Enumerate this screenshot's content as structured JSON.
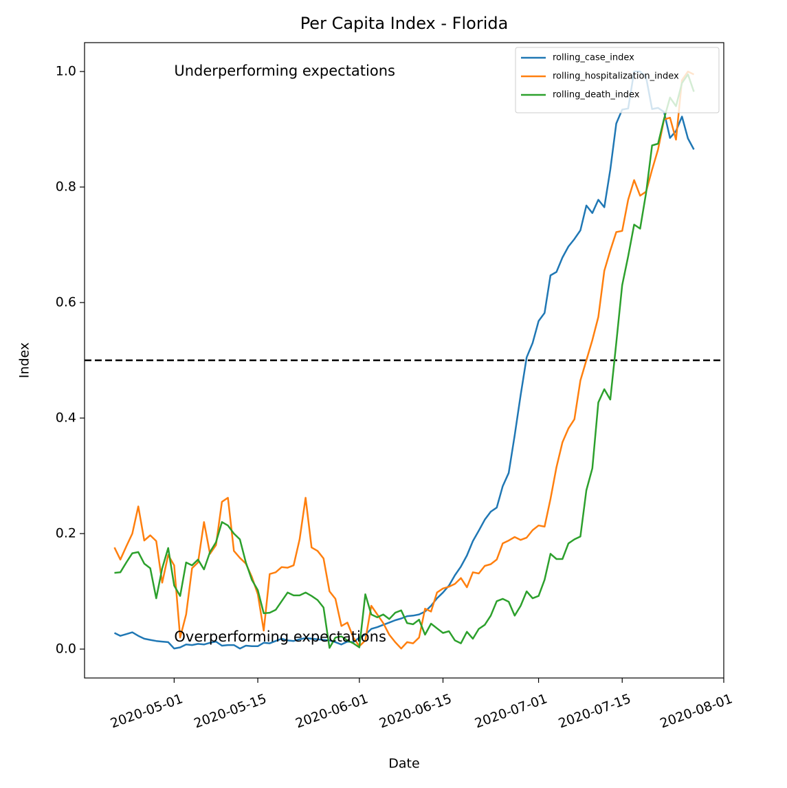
{
  "chart_data": {
    "type": "line",
    "title": "Per Capita Index - Florida",
    "xlabel": "Date",
    "ylabel": "Index",
    "x": [
      "2020-04-21",
      "2020-04-22",
      "2020-04-23",
      "2020-04-24",
      "2020-04-25",
      "2020-04-26",
      "2020-04-27",
      "2020-04-28",
      "2020-04-29",
      "2020-04-30",
      "2020-05-01",
      "2020-05-02",
      "2020-05-03",
      "2020-05-04",
      "2020-05-05",
      "2020-05-06",
      "2020-05-07",
      "2020-05-08",
      "2020-05-09",
      "2020-05-10",
      "2020-05-11",
      "2020-05-12",
      "2020-05-13",
      "2020-05-14",
      "2020-05-15",
      "2020-05-16",
      "2020-05-17",
      "2020-05-18",
      "2020-05-19",
      "2020-05-20",
      "2020-05-21",
      "2020-05-22",
      "2020-05-23",
      "2020-05-24",
      "2020-05-25",
      "2020-05-26",
      "2020-05-27",
      "2020-05-28",
      "2020-05-29",
      "2020-05-30",
      "2020-05-31",
      "2020-06-01",
      "2020-06-02",
      "2020-06-03",
      "2020-06-04",
      "2020-06-05",
      "2020-06-06",
      "2020-06-07",
      "2020-06-08",
      "2020-06-09",
      "2020-06-10",
      "2020-06-11",
      "2020-06-12",
      "2020-06-13",
      "2020-06-14",
      "2020-06-15",
      "2020-06-16",
      "2020-06-17",
      "2020-06-18",
      "2020-06-19",
      "2020-06-20",
      "2020-06-21",
      "2020-06-22",
      "2020-06-23",
      "2020-06-24",
      "2020-06-25",
      "2020-06-26",
      "2020-06-27",
      "2020-06-28",
      "2020-06-29",
      "2020-06-30",
      "2020-07-01",
      "2020-07-02",
      "2020-07-03",
      "2020-07-04",
      "2020-07-05",
      "2020-07-06",
      "2020-07-07",
      "2020-07-08",
      "2020-07-09",
      "2020-07-10",
      "2020-07-11",
      "2020-07-12",
      "2020-07-13",
      "2020-07-14",
      "2020-07-15",
      "2020-07-16",
      "2020-07-17",
      "2020-07-18",
      "2020-07-19",
      "2020-07-20",
      "2020-07-21",
      "2020-07-22",
      "2020-07-23",
      "2020-07-24",
      "2020-07-25",
      "2020-07-26",
      "2020-07-27"
    ],
    "series": [
      {
        "name": "rolling_case_index",
        "color": "#1f77b4",
        "values": [
          0.028,
          0.023,
          0.026,
          0.029,
          0.023,
          0.018,
          0.016,
          0.014,
          0.013,
          0.012,
          0.001,
          0.003,
          0.008,
          0.007,
          0.009,
          0.008,
          0.011,
          0.013,
          0.006,
          0.007,
          0.007,
          0.001,
          0.006,
          0.005,
          0.005,
          0.011,
          0.01,
          0.014,
          0.018,
          0.015,
          0.014,
          0.017,
          0.019,
          0.018,
          0.017,
          0.016,
          0.015,
          0.012,
          0.008,
          0.013,
          0.012,
          0.02,
          0.025,
          0.035,
          0.038,
          0.042,
          0.046,
          0.05,
          0.053,
          0.057,
          0.058,
          0.06,
          0.065,
          0.075,
          0.088,
          0.098,
          0.11,
          0.128,
          0.143,
          0.162,
          0.187,
          0.205,
          0.224,
          0.238,
          0.245,
          0.282,
          0.305,
          0.37,
          0.44,
          0.505,
          0.53,
          0.568,
          0.582,
          0.647,
          0.653,
          0.678,
          0.697,
          0.71,
          0.725,
          0.768,
          0.755,
          0.778,
          0.765,
          0.83,
          0.91,
          0.934,
          0.936,
          1.0,
          1.0,
          0.99,
          0.935,
          0.937,
          0.93,
          0.885,
          0.897,
          0.922,
          0.884,
          0.865
        ]
      },
      {
        "name": "rolling_hospitalization_index",
        "color": "#ff7f0e",
        "values": [
          0.176,
          0.155,
          0.178,
          0.2,
          0.247,
          0.188,
          0.197,
          0.187,
          0.115,
          0.163,
          0.145,
          0.02,
          0.06,
          0.14,
          0.15,
          0.22,
          0.165,
          0.18,
          0.255,
          0.262,
          0.17,
          0.158,
          0.148,
          0.125,
          0.095,
          0.032,
          0.13,
          0.133,
          0.142,
          0.141,
          0.145,
          0.19,
          0.262,
          0.176,
          0.17,
          0.157,
          0.1,
          0.087,
          0.04,
          0.046,
          0.02,
          0.005,
          0.015,
          0.075,
          0.06,
          0.045,
          0.025,
          0.012,
          0.001,
          0.012,
          0.01,
          0.02,
          0.07,
          0.065,
          0.098,
          0.105,
          0.108,
          0.113,
          0.123,
          0.107,
          0.133,
          0.131,
          0.144,
          0.147,
          0.155,
          0.183,
          0.188,
          0.194,
          0.189,
          0.193,
          0.206,
          0.214,
          0.212,
          0.26,
          0.315,
          0.358,
          0.382,
          0.398,
          0.465,
          0.5,
          0.535,
          0.575,
          0.655,
          0.69,
          0.722,
          0.724,
          0.778,
          0.812,
          0.785,
          0.792,
          0.83,
          0.865,
          0.917,
          0.92,
          0.882,
          0.985,
          1.0,
          0.995
        ]
      },
      {
        "name": "rolling_death_index",
        "color": "#2ca02c",
        "values": [
          0.132,
          0.133,
          0.15,
          0.166,
          0.168,
          0.148,
          0.14,
          0.088,
          0.14,
          0.175,
          0.11,
          0.092,
          0.15,
          0.145,
          0.155,
          0.138,
          0.168,
          0.185,
          0.22,
          0.214,
          0.2,
          0.19,
          0.15,
          0.12,
          0.102,
          0.062,
          0.063,
          0.068,
          0.083,
          0.098,
          0.093,
          0.093,
          0.098,
          0.092,
          0.085,
          0.072,
          0.002,
          0.02,
          0.022,
          0.015,
          0.01,
          0.003,
          0.095,
          0.06,
          0.055,
          0.06,
          0.052,
          0.063,
          0.067,
          0.045,
          0.043,
          0.051,
          0.025,
          0.044,
          0.036,
          0.028,
          0.031,
          0.015,
          0.01,
          0.03,
          0.018,
          0.035,
          0.042,
          0.058,
          0.083,
          0.087,
          0.082,
          0.058,
          0.075,
          0.1,
          0.088,
          0.092,
          0.12,
          0.165,
          0.156,
          0.156,
          0.183,
          0.19,
          0.195,
          0.275,
          0.313,
          0.427,
          0.45,
          0.432,
          0.53,
          0.63,
          0.68,
          0.735,
          0.728,
          0.79,
          0.872,
          0.875,
          0.918,
          0.955,
          0.94,
          0.98,
          0.995,
          0.965
        ]
      }
    ],
    "xlim": [
      "2020-04-16",
      "2020-08-01"
    ],
    "xticks": [
      "2020-05-01",
      "2020-05-15",
      "2020-06-01",
      "2020-06-15",
      "2020-07-01",
      "2020-07-15",
      "2020-08-01"
    ],
    "ylim": [
      -0.05,
      1.05
    ],
    "yticks": [
      {
        "value": 0,
        "label": "0.0"
      },
      0.2,
      0.4,
      0.6,
      0.8,
      {
        "value": 1,
        "label": "1.0"
      }
    ],
    "hline": {
      "y": 0.5,
      "color": "#000000",
      "style": "dashed"
    },
    "annotations": [
      {
        "text": "Underperforming expectations",
        "x": "2020-05-01",
        "y": 1.0
      },
      {
        "text": "Overperforming expectations",
        "x": "2020-05-01",
        "y": 0.02
      }
    ],
    "legend": "upper right",
    "grid": false
  }
}
